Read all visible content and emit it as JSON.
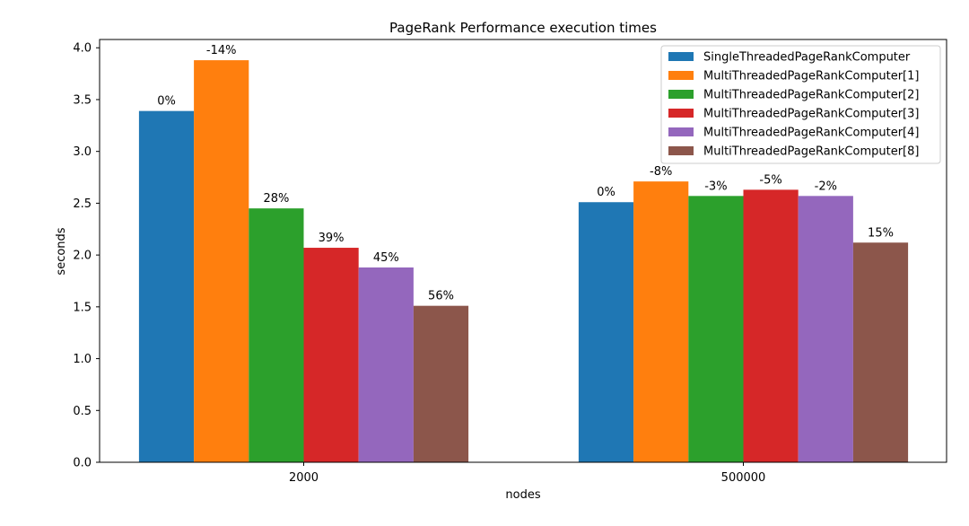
{
  "chart_data": {
    "type": "bar",
    "title": "PageRank Performance execution times",
    "xlabel": "nodes",
    "ylabel": "seconds",
    "categories": [
      "2000",
      "500000"
    ],
    "ylim": [
      0,
      4.08
    ],
    "yticks": [
      "0.0",
      "0.5",
      "1.0",
      "1.5",
      "2.0",
      "2.5",
      "3.0",
      "3.5",
      "4.0"
    ],
    "legend_position": "top-right",
    "grid": false,
    "series": [
      {
        "name": "SingleThreadedPageRankComputer",
        "color": "#1f77b4",
        "values": [
          3.39,
          2.51
        ],
        "labels": [
          "0%",
          "0%"
        ]
      },
      {
        "name": "MultiThreadedPageRankComputer[1]",
        "color": "#ff7f0e",
        "values": [
          3.88,
          2.71
        ],
        "labels": [
          "-14%",
          "-8%"
        ]
      },
      {
        "name": "MultiThreadedPageRankComputer[2]",
        "color": "#2ca02c",
        "values": [
          2.45,
          2.57
        ],
        "labels": [
          "28%",
          "-3%"
        ]
      },
      {
        "name": "MultiThreadedPageRankComputer[3]",
        "color": "#d62728",
        "values": [
          2.07,
          2.63
        ],
        "labels": [
          "39%",
          "-5%"
        ]
      },
      {
        "name": "MultiThreadedPageRankComputer[4]",
        "color": "#9467bd",
        "values": [
          1.88,
          2.57
        ],
        "labels": [
          "45%",
          "-2%"
        ]
      },
      {
        "name": "MultiThreadedPageRankComputer[8]",
        "color": "#8c564b",
        "values": [
          1.51,
          2.12
        ],
        "labels": [
          "56%",
          "15%"
        ]
      }
    ]
  }
}
